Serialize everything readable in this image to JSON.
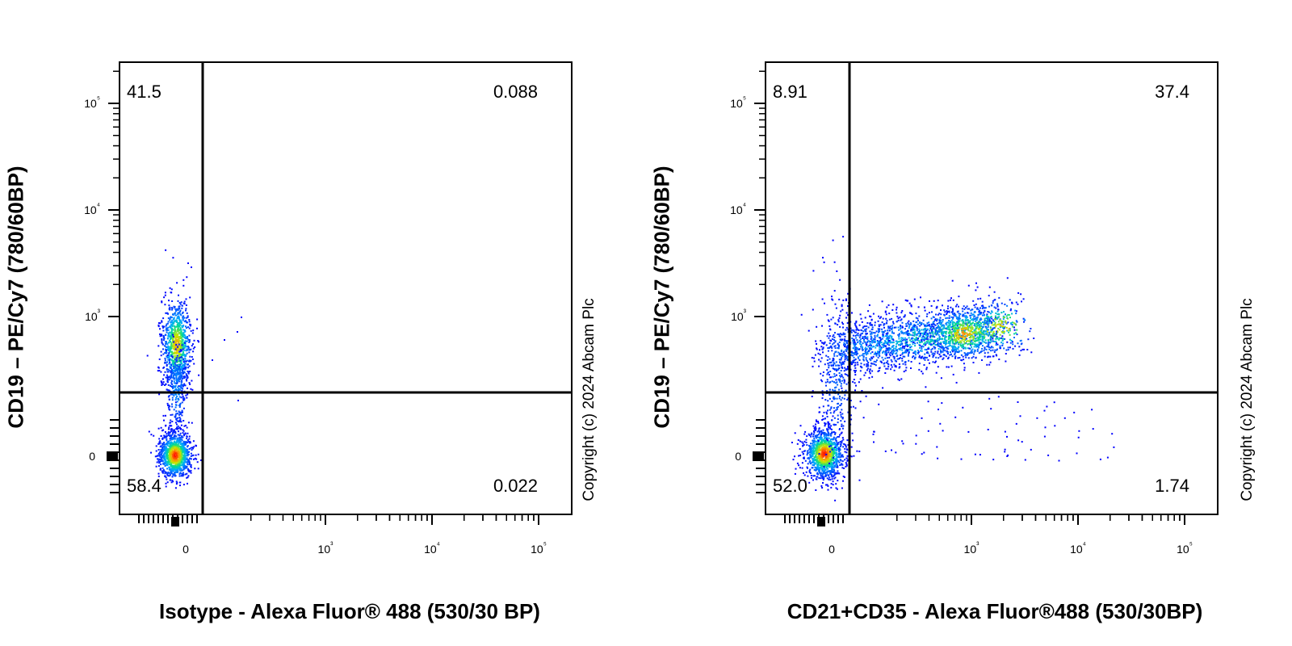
{
  "chart_data": [
    {
      "type": "scatter",
      "subtype": "flow-cytometry-density-dot-plot",
      "xlabel": "Isotype - Alexa Fluor® 488 (530/30 BP)",
      "ylabel": "CD19 – PE/Cy7 (780/60BP)",
      "annotation": "Copyright (c) 2024 Abcam Plc",
      "x_scale": "biexponential",
      "y_scale": "biexponential",
      "x_ticks": [
        "0",
        "10³",
        "10⁴",
        "10⁵"
      ],
      "y_ticks": [
        "0",
        "10³",
        "10⁴",
        "10⁵"
      ],
      "quadrants": {
        "top_left": "41.5",
        "top_right": "0.088",
        "bottom_left": "58.4",
        "bottom_right": "0.022"
      },
      "populations": [
        {
          "name": "",
          "x_center": 0,
          "y_center": 550,
          "note": "CD19+ cluster"
        },
        {
          "name": "",
          "x_center": 0,
          "y_center": 0,
          "note": "CD19- cluster"
        }
      ]
    },
    {
      "type": "scatter",
      "subtype": "flow-cytometry-density-dot-plot",
      "xlabel": "CD21+CD35 - Alexa Fluor®488 (530/30BP)",
      "ylabel": "CD19 – PE/Cy7 (780/60BP)",
      "annotation": "Copyright (c) 2024 Abcam Plc",
      "x_scale": "biexponential",
      "y_scale": "biexponential",
      "x_ticks": [
        "0",
        "10³",
        "10⁴",
        "10⁵"
      ],
      "y_ticks": [
        "0",
        "10³",
        "10⁴",
        "10⁵"
      ],
      "quadrants": {
        "top_left": "8.91",
        "top_right": "37.4",
        "bottom_left": "52.0",
        "bottom_right": "1.74"
      },
      "populations": [
        {
          "name": "",
          "x_center": 1000,
          "y_center": 700,
          "note": "CD19+ CD21/35+ cluster"
        },
        {
          "name": "",
          "x_center": 0,
          "y_center": 0,
          "note": "double-negative cluster"
        }
      ]
    }
  ],
  "colors": {
    "density_low": "#0000ff",
    "density_mid": "#00e0a0",
    "density_high": "#ff2000",
    "axis": "#000000"
  }
}
